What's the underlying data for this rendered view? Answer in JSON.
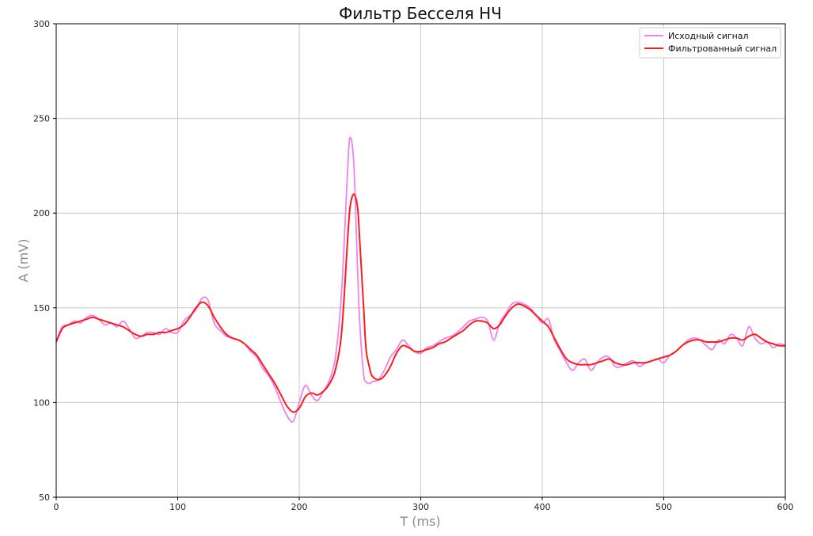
{
  "chart_data": {
    "type": "line",
    "title": "Фильтр Бесселя НЧ",
    "xlabel": "T (ms)",
    "ylabel": "A (mV)",
    "xlim": [
      0,
      600
    ],
    "ylim": [
      50,
      300
    ],
    "xticks": [
      "0",
      "100",
      "200",
      "300",
      "400",
      "500",
      "600"
    ],
    "yticks": [
      "50",
      "100",
      "150",
      "200",
      "250",
      "300"
    ],
    "grid": true,
    "legend": "top-right",
    "series": [
      {
        "name": "Исходный сигнал",
        "color": "#ee82ee",
        "x": [
          0,
          5,
          10,
          15,
          20,
          25,
          30,
          35,
          40,
          45,
          50,
          55,
          60,
          65,
          70,
          75,
          80,
          85,
          90,
          95,
          100,
          105,
          110,
          115,
          120,
          125,
          130,
          135,
          140,
          145,
          150,
          155,
          160,
          165,
          170,
          175,
          180,
          185,
          190,
          195,
          200,
          205,
          210,
          215,
          220,
          225,
          230,
          235,
          240,
          242,
          245,
          248,
          250,
          253,
          255,
          258,
          260,
          265,
          270,
          275,
          280,
          285,
          290,
          295,
          300,
          305,
          310,
          315,
          320,
          325,
          330,
          335,
          340,
          345,
          350,
          355,
          360,
          365,
          370,
          375,
          380,
          385,
          390,
          395,
          400,
          405,
          410,
          415,
          420,
          425,
          430,
          435,
          440,
          445,
          450,
          455,
          460,
          465,
          470,
          475,
          480,
          485,
          490,
          495,
          500,
          505,
          510,
          515,
          520,
          525,
          530,
          535,
          540,
          545,
          550,
          555,
          560,
          565,
          570,
          575,
          580,
          585,
          590,
          595,
          600
        ],
        "values": [
          132,
          140,
          141,
          143,
          142,
          145,
          146,
          144,
          141,
          142,
          140,
          143,
          139,
          134,
          135,
          137,
          137,
          136,
          139,
          137,
          137,
          143,
          146,
          149,
          155,
          154,
          142,
          138,
          135,
          134,
          133,
          131,
          127,
          124,
          118,
          114,
          108,
          100,
          93,
          90,
          100,
          109,
          104,
          101,
          106,
          112,
          125,
          160,
          225,
          240,
          225,
          170,
          140,
          115,
          111,
          110,
          111,
          112,
          117,
          124,
          128,
          133,
          130,
          127,
          126,
          129,
          130,
          132,
          134,
          135,
          137,
          140,
          143,
          144,
          145,
          143,
          133,
          142,
          147,
          152,
          153,
          152,
          150,
          146,
          142,
          144,
          133,
          127,
          121,
          117,
          121,
          123,
          117,
          121,
          124,
          124,
          119,
          119,
          121,
          122,
          119,
          121,
          122,
          123,
          121,
          125,
          127,
          130,
          133,
          134,
          133,
          130,
          128,
          133,
          131,
          136,
          134,
          130,
          140,
          134,
          131,
          132,
          129,
          131,
          130
        ]
      },
      {
        "name": "Фильтрованный сигнал",
        "color": "#ff1a1a",
        "x": [
          0,
          5,
          10,
          15,
          20,
          25,
          30,
          35,
          40,
          45,
          50,
          55,
          60,
          65,
          70,
          75,
          80,
          85,
          90,
          95,
          100,
          105,
          110,
          115,
          120,
          125,
          130,
          135,
          140,
          145,
          150,
          155,
          160,
          165,
          170,
          175,
          180,
          185,
          190,
          195,
          200,
          205,
          210,
          215,
          220,
          225,
          230,
          235,
          240,
          242,
          245,
          248,
          250,
          253,
          255,
          258,
          260,
          265,
          270,
          275,
          280,
          285,
          290,
          295,
          300,
          305,
          310,
          315,
          320,
          325,
          330,
          335,
          340,
          345,
          350,
          355,
          360,
          365,
          370,
          375,
          380,
          385,
          390,
          395,
          400,
          405,
          410,
          415,
          420,
          425,
          430,
          435,
          440,
          445,
          450,
          455,
          460,
          465,
          470,
          475,
          480,
          485,
          490,
          495,
          500,
          505,
          510,
          515,
          520,
          525,
          530,
          535,
          540,
          545,
          550,
          555,
          560,
          565,
          570,
          575,
          580,
          585,
          590,
          595,
          600
        ],
        "values": [
          132,
          139,
          141,
          142,
          143,
          144,
          145,
          144,
          143,
          142,
          141,
          140,
          138,
          136,
          135,
          136,
          136,
          137,
          137,
          138,
          139,
          141,
          145,
          150,
          153,
          151,
          145,
          140,
          136,
          134,
          133,
          131,
          128,
          125,
          120,
          115,
          110,
          104,
          98,
          95,
          97,
          103,
          105,
          104,
          106,
          110,
          118,
          138,
          188,
          204,
          210,
          203,
          183,
          150,
          128,
          118,
          114,
          112,
          114,
          119,
          126,
          130,
          129,
          127,
          127,
          128,
          129,
          131,
          132,
          134,
          136,
          138,
          141,
          143,
          143,
          142,
          139,
          141,
          146,
          150,
          152,
          151,
          149,
          146,
          143,
          140,
          134,
          128,
          123,
          121,
          120,
          120,
          120,
          121,
          122,
          123,
          121,
          120,
          120,
          121,
          121,
          121,
          122,
          123,
          124,
          125,
          127,
          130,
          132,
          133,
          133,
          132,
          132,
          132,
          133,
          134,
          134,
          133,
          135,
          136,
          134,
          132,
          131,
          130,
          130
        ]
      }
    ]
  }
}
